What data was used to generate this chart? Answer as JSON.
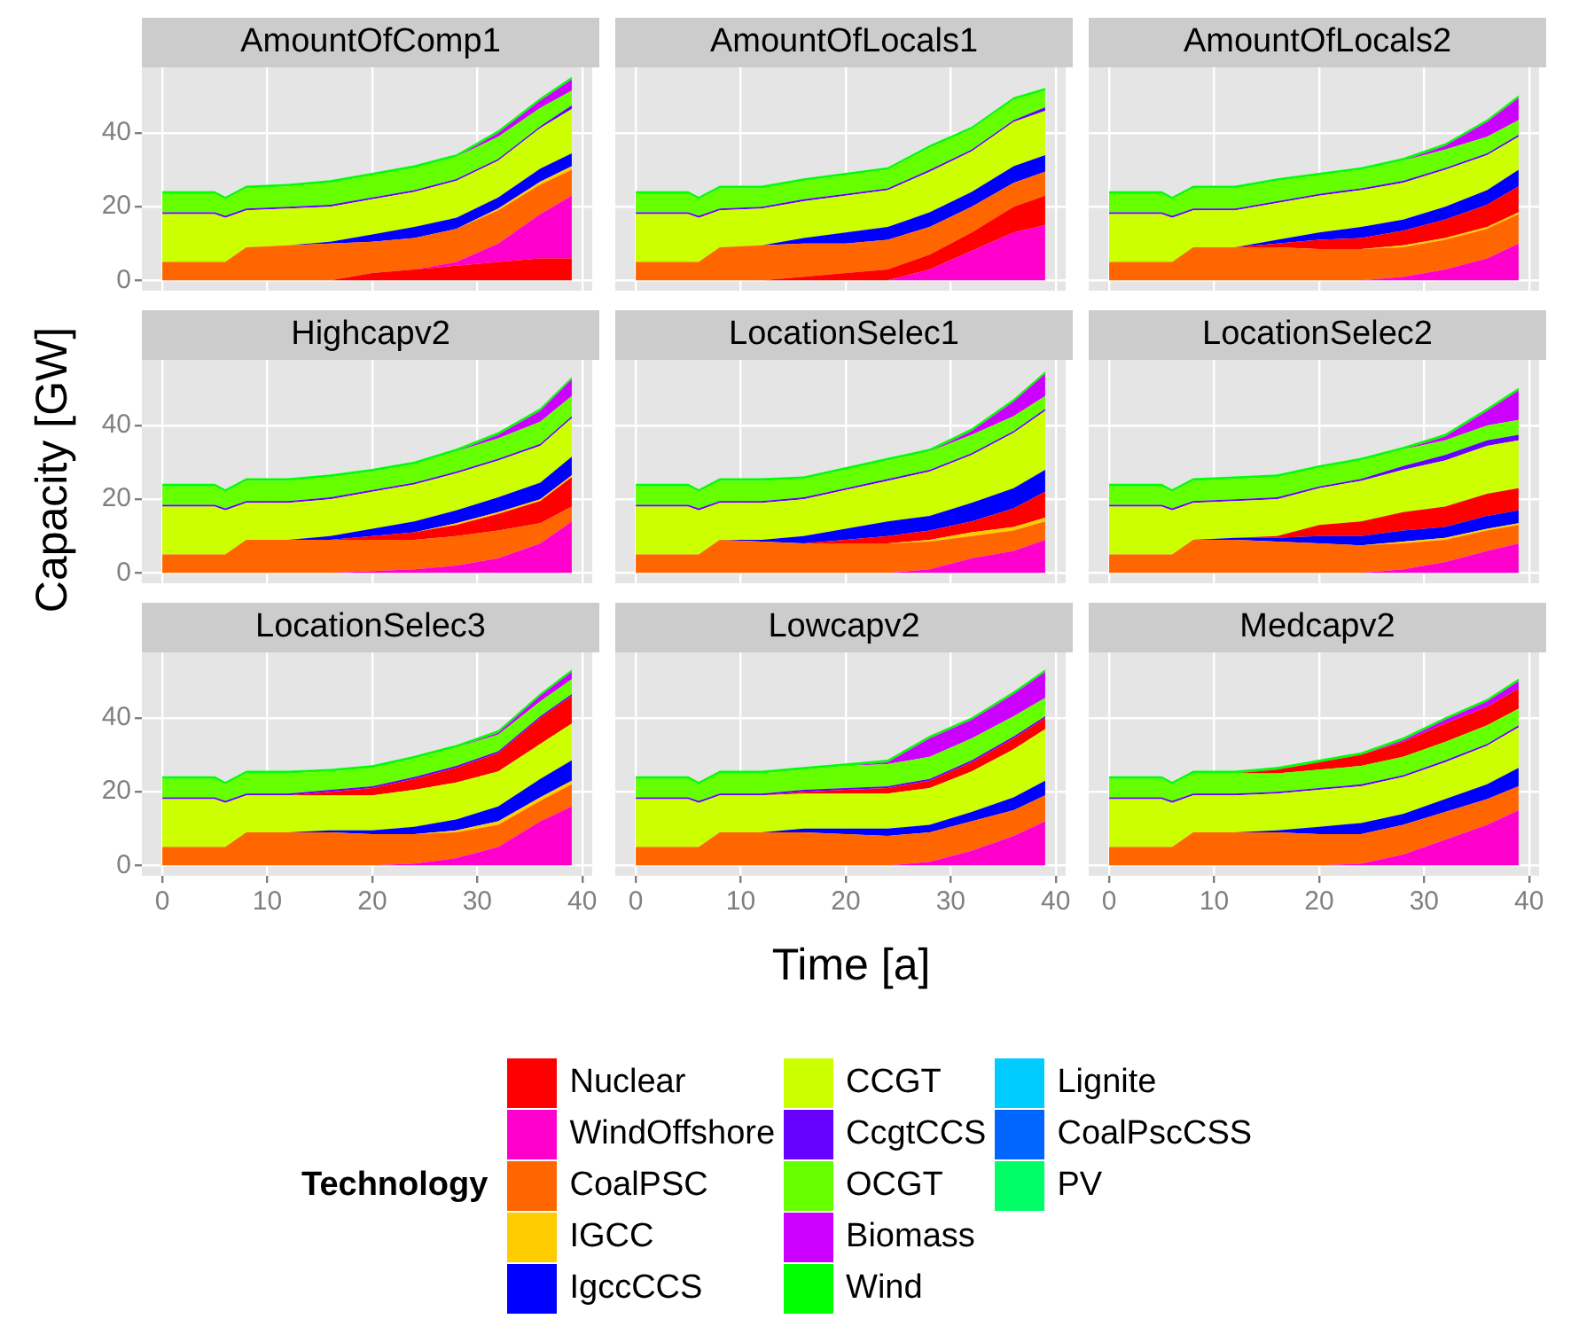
{
  "chart_data": [
    {
      "type": "area",
      "title": "AmountOfComp1",
      "xlabel": "Time [a]",
      "ylabel": "Capacity [GW]",
      "legend": "bottom",
      "legend_title": "Technology",
      "stacked": true,
      "grid": true,
      "tick_labels": "y",
      "x": [
        0,
        5,
        6,
        8,
        12,
        16,
        20,
        24,
        28,
        32,
        36,
        39
      ],
      "xlim": [
        -1.95,
        40.95
      ],
      "ylim": [
        -2.8,
        57.8
      ],
      "xticks": [
        0,
        10,
        20,
        30,
        40
      ],
      "yticks": [
        0,
        20,
        40
      ],
      "series": [
        {
          "name": "Nuclear",
          "color": "#ff0000",
          "values": [
            0,
            0,
            0,
            0,
            0,
            0,
            2,
            3,
            4,
            5,
            6,
            6
          ]
        },
        {
          "name": "WindOffshore",
          "color": "#ff00cc",
          "values": [
            0,
            0,
            0,
            0,
            0,
            0,
            0,
            0,
            1,
            5,
            12,
            17
          ]
        },
        {
          "name": "CoalPSC",
          "color": "#ff6600",
          "values": [
            5,
            5,
            5,
            9,
            9.5,
            10,
            8.5,
            8.5,
            9,
            9,
            8,
            7
          ]
        },
        {
          "name": "IGCC",
          "color": "#ffcc00",
          "values": [
            0,
            0,
            0,
            0,
            0,
            0,
            0,
            0,
            0,
            0.5,
            0.8,
            1
          ]
        },
        {
          "name": "IgccCCS",
          "color": "#0000ff",
          "values": [
            0,
            0,
            0,
            0,
            0,
            0.5,
            2,
            3,
            3,
            3,
            3.5,
            3.5
          ]
        },
        {
          "name": "CCGT",
          "color": "#ccff00",
          "values": [
            13,
            13,
            12,
            10,
            10,
            9.5,
            9.5,
            9.5,
            10,
            10,
            11,
            12
          ]
        },
        {
          "name": "CcgtCCS",
          "color": "#6600ff",
          "values": [
            0.5,
            0.5,
            0.5,
            0.5,
            0.5,
            0.5,
            0.5,
            0.5,
            0.5,
            0.5,
            0.5,
            1
          ]
        },
        {
          "name": "OCGT",
          "color": "#66ff00",
          "values": [
            5,
            5,
            4.5,
            5.5,
            5.5,
            6,
            6,
            6,
            6,
            6,
            5,
            4
          ]
        },
        {
          "name": "Biomass",
          "color": "#cc00ff",
          "values": [
            0,
            0,
            0,
            0,
            0,
            0,
            0,
            0,
            0,
            1,
            2,
            3
          ]
        },
        {
          "name": "Wind",
          "color": "#00ff00",
          "values": [
            0.7,
            0.7,
            0.7,
            0.7,
            0.7,
            0.7,
            0.7,
            0.7,
            0.7,
            0.7,
            0.7,
            0.7
          ]
        },
        {
          "name": "Lignite",
          "color": "#00ccff",
          "values": [
            null,
            null,
            null,
            null,
            null,
            null,
            null,
            null,
            null,
            null,
            null,
            null
          ]
        },
        {
          "name": "CoalPscCSS",
          "color": "#0066ff",
          "values": [
            null,
            null,
            null,
            null,
            null,
            null,
            null,
            null,
            null,
            null,
            null,
            null
          ]
        },
        {
          "name": "PV",
          "color": "#00ff66",
          "values": [
            null,
            null,
            null,
            null,
            null,
            null,
            null,
            null,
            null,
            null,
            null,
            null
          ]
        }
      ]
    },
    {
      "type": "area",
      "title": "AmountOfLocals1",
      "stacked": true,
      "grid": true,
      "tick_labels": false,
      "x": [
        0,
        5,
        6,
        8,
        12,
        16,
        20,
        24,
        28,
        32,
        36,
        39
      ],
      "xlim": [
        -1.95,
        40.95
      ],
      "ylim": [
        -2.8,
        57.8
      ],
      "xticks": [
        0,
        10,
        20,
        30,
        40
      ],
      "yticks": [
        0,
        20,
        40
      ],
      "series": [
        {
          "color": "#ff00cc",
          "values": [
            0,
            0,
            0,
            0,
            0,
            0,
            0,
            0,
            3,
            8,
            13,
            15
          ]
        },
        {
          "color": "#ff0000",
          "values": [
            0,
            0,
            0,
            0,
            0,
            1,
            2,
            3,
            4,
            5,
            7,
            8
          ]
        },
        {
          "color": "#ff6600",
          "values": [
            5,
            5,
            5,
            9,
            9.5,
            9,
            8,
            8,
            7.5,
            7,
            6.5,
            6.5
          ]
        },
        {
          "color": "#0000ff",
          "values": [
            0,
            0,
            0,
            0,
            0,
            1.5,
            3,
            3.5,
            4,
            4,
            4.5,
            4.5
          ]
        },
        {
          "color": "#ccff00",
          "values": [
            13,
            13,
            12,
            10,
            10,
            10,
            10,
            10,
            11,
            11,
            12,
            12
          ]
        },
        {
          "color": "#6600ff",
          "values": [
            0.5,
            0.5,
            0.5,
            0.5,
            0.5,
            0.5,
            0.5,
            0.5,
            0.5,
            0.5,
            0.5,
            1
          ]
        },
        {
          "color": "#66ff00",
          "values": [
            5,
            5,
            4.5,
            5.5,
            5,
            5,
            5,
            5,
            6,
            5.5,
            5.5,
            4.5
          ]
        },
        {
          "color": "#00ff00",
          "values": [
            0.7,
            0.7,
            0.7,
            0.7,
            0.7,
            0.7,
            0.7,
            0.7,
            0.7,
            0.7,
            0.7,
            0.7
          ]
        }
      ]
    },
    {
      "type": "area",
      "title": "AmountOfLocals2",
      "stacked": true,
      "grid": true,
      "tick_labels": false,
      "x": [
        0,
        5,
        6,
        8,
        12,
        16,
        20,
        24,
        28,
        32,
        36,
        39
      ],
      "xlim": [
        -1.95,
        40.95
      ],
      "ylim": [
        -2.8,
        57.8
      ],
      "xticks": [
        0,
        10,
        20,
        30,
        40
      ],
      "yticks": [
        0,
        20,
        40
      ],
      "series": [
        {
          "color": "#ff00cc",
          "values": [
            0,
            0,
            0,
            0,
            0,
            0,
            0,
            0,
            1,
            3,
            6,
            10
          ]
        },
        {
          "color": "#ff6600",
          "values": [
            5,
            5,
            5,
            9,
            9,
            9,
            8.5,
            8.5,
            8,
            8,
            8,
            8
          ]
        },
        {
          "color": "#ffcc00",
          "values": [
            0,
            0,
            0,
            0,
            0,
            0,
            0,
            0,
            0.5,
            0.5,
            0.5,
            0.5
          ]
        },
        {
          "color": "#ff0000",
          "values": [
            0,
            0,
            0,
            0,
            0,
            1,
            2.5,
            3,
            4,
            5,
            6,
            7
          ]
        },
        {
          "color": "#0000ff",
          "values": [
            0,
            0,
            0,
            0,
            0,
            1,
            2,
            3,
            3,
            3.5,
            4,
            4.5
          ]
        },
        {
          "color": "#ccff00",
          "values": [
            13,
            13,
            12,
            10,
            10,
            10,
            10,
            10,
            10,
            10,
            9.5,
            9
          ]
        },
        {
          "color": "#6600ff",
          "values": [
            0.5,
            0.5,
            0.5,
            0.5,
            0.5,
            0.5,
            0.5,
            0.5,
            0.5,
            0.5,
            0.5,
            0.5
          ]
        },
        {
          "color": "#66ff00",
          "values": [
            5,
            5,
            4.5,
            5.5,
            5.5,
            5.5,
            5,
            5,
            5.5,
            5,
            4.5,
            4
          ]
        },
        {
          "color": "#cc00ff",
          "values": [
            0,
            0,
            0,
            0,
            0,
            0,
            0,
            0,
            0,
            1,
            4,
            6
          ]
        },
        {
          "color": "#00ff00",
          "values": [
            0.7,
            0.7,
            0.7,
            0.7,
            0.7,
            0.7,
            0.7,
            0.7,
            0.7,
            0.7,
            0.7,
            0.7
          ]
        }
      ]
    },
    {
      "type": "area",
      "title": "Highcapv2",
      "stacked": true,
      "grid": true,
      "tick_labels": "y",
      "x": [
        0,
        5,
        6,
        8,
        12,
        16,
        20,
        24,
        28,
        32,
        36,
        39
      ],
      "xlim": [
        -1.95,
        40.95
      ],
      "ylim": [
        -2.8,
        57.8
      ],
      "xticks": [
        0,
        10,
        20,
        30,
        40
      ],
      "yticks": [
        0,
        20,
        40
      ],
      "series": [
        {
          "color": "#ff00cc",
          "values": [
            0,
            0,
            0,
            0,
            0,
            0,
            0.5,
            1,
            2,
            4,
            8,
            14
          ]
        },
        {
          "color": "#ff6600",
          "values": [
            5,
            5,
            5,
            9,
            9,
            9,
            8.5,
            8,
            8,
            7.5,
            5.5,
            4
          ]
        },
        {
          "color": "#ff0000",
          "values": [
            0,
            0,
            0,
            0,
            0,
            0,
            1,
            2,
            3,
            4.5,
            6,
            8
          ]
        },
        {
          "color": "#ffcc00",
          "values": [
            0,
            0,
            0,
            0,
            0,
            0,
            0,
            0,
            0.5,
            0.5,
            0.5,
            0.5
          ]
        },
        {
          "color": "#0000ff",
          "values": [
            0,
            0,
            0,
            0,
            0,
            1,
            2,
            3,
            3.5,
            4,
            4.5,
            5
          ]
        },
        {
          "color": "#ccff00",
          "values": [
            13,
            13,
            12,
            10,
            10,
            10,
            10,
            10,
            10,
            10,
            10,
            10.5
          ]
        },
        {
          "color": "#6600ff",
          "values": [
            0.5,
            0.5,
            0.5,
            0.5,
            0.5,
            0.5,
            0.5,
            0.5,
            0.5,
            0.5,
            0.5,
            0.5
          ]
        },
        {
          "color": "#66ff00",
          "values": [
            5,
            5,
            4.5,
            5.5,
            5.5,
            5.5,
            5,
            5,
            5.5,
            5.5,
            6,
            5.5
          ]
        },
        {
          "color": "#cc00ff",
          "values": [
            0,
            0,
            0,
            0,
            0,
            0,
            0,
            0,
            0,
            1,
            3,
            4.5
          ]
        },
        {
          "color": "#00ff00",
          "values": [
            0.7,
            0.7,
            0.7,
            0.7,
            0.7,
            0.7,
            0.7,
            0.7,
            0.7,
            0.7,
            0.7,
            0.7
          ]
        }
      ]
    },
    {
      "type": "area",
      "title": "LocationSelec1",
      "stacked": true,
      "grid": true,
      "tick_labels": false,
      "x": [
        0,
        5,
        6,
        8,
        12,
        16,
        20,
        24,
        28,
        32,
        36,
        39
      ],
      "xlim": [
        -1.95,
        40.95
      ],
      "ylim": [
        -2.8,
        57.8
      ],
      "xticks": [
        0,
        10,
        20,
        30,
        40
      ],
      "yticks": [
        0,
        20,
        40
      ],
      "series": [
        {
          "color": "#ff00cc",
          "values": [
            0,
            0,
            0,
            0,
            0,
            0,
            0,
            0,
            1,
            4,
            6,
            9
          ]
        },
        {
          "color": "#ff6600",
          "values": [
            5,
            5,
            5,
            9,
            8.5,
            8,
            8,
            8,
            7.5,
            6,
            5.5,
            5
          ]
        },
        {
          "color": "#ffcc00",
          "values": [
            0,
            0,
            0,
            0,
            0,
            0,
            0,
            0,
            0.5,
            1,
            1,
            1
          ]
        },
        {
          "color": "#ff0000",
          "values": [
            0,
            0,
            0,
            0,
            0,
            0,
            1,
            2,
            2.5,
            3,
            5,
            7
          ]
        },
        {
          "color": "#0000ff",
          "values": [
            0,
            0,
            0,
            0,
            0.5,
            2,
            3,
            4,
            4,
            5,
            5.5,
            6
          ]
        },
        {
          "color": "#ccff00",
          "values": [
            13,
            13,
            12,
            10,
            10,
            10,
            10.5,
            11,
            12,
            13,
            15,
            16
          ]
        },
        {
          "color": "#6600ff",
          "values": [
            0.5,
            0.5,
            0.5,
            0.5,
            0.5,
            0.5,
            0.5,
            0.5,
            0.5,
            0.5,
            0.5,
            0.5
          ]
        },
        {
          "color": "#66ff00",
          "values": [
            5,
            5,
            4.5,
            5.5,
            5.5,
            5,
            5,
            5,
            5,
            5,
            4,
            3.5
          ]
        },
        {
          "color": "#cc00ff",
          "values": [
            0,
            0,
            0,
            0,
            0,
            0,
            0,
            0,
            0,
            1,
            4,
            6
          ]
        },
        {
          "color": "#00ff00",
          "values": [
            0.7,
            0.7,
            0.7,
            0.7,
            0.7,
            0.7,
            0.7,
            0.7,
            0.7,
            0.7,
            0.7,
            0.7
          ]
        }
      ]
    },
    {
      "type": "area",
      "title": "LocationSelec2",
      "stacked": true,
      "grid": true,
      "tick_labels": false,
      "x": [
        0,
        5,
        6,
        8,
        12,
        16,
        20,
        24,
        28,
        32,
        36,
        39
      ],
      "xlim": [
        -1.95,
        40.95
      ],
      "ylim": [
        -2.8,
        57.8
      ],
      "xticks": [
        0,
        10,
        20,
        30,
        40
      ],
      "yticks": [
        0,
        20,
        40
      ],
      "series": [
        {
          "color": "#ff00cc",
          "values": [
            0,
            0,
            0,
            0,
            0,
            0,
            0,
            0,
            1,
            3,
            6,
            8
          ]
        },
        {
          "color": "#ff6600",
          "values": [
            5,
            5,
            5,
            9,
            9,
            8.5,
            8,
            7.5,
            7,
            6,
            5.5,
            5
          ]
        },
        {
          "color": "#ffcc00",
          "values": [
            0,
            0,
            0,
            0,
            0,
            0,
            0,
            0,
            0.5,
            0.5,
            0.5,
            0.5
          ]
        },
        {
          "color": "#0000ff",
          "values": [
            0,
            0,
            0,
            0,
            0.5,
            1,
            2,
            2.5,
            3,
            3,
            3.5,
            3.5
          ]
        },
        {
          "color": "#ff0000",
          "values": [
            0,
            0,
            0,
            0,
            0,
            0.5,
            3,
            4,
            5,
            5.5,
            6,
            6
          ]
        },
        {
          "color": "#ccff00",
          "values": [
            13,
            13,
            12,
            10,
            10,
            10,
            10,
            11,
            11.5,
            12.5,
            13,
            13
          ]
        },
        {
          "color": "#6600ff",
          "values": [
            0.5,
            0.5,
            0.5,
            0.5,
            0.5,
            0.5,
            0.5,
            0.5,
            1,
            1.5,
            1.5,
            1.5
          ]
        },
        {
          "color": "#66ff00",
          "values": [
            5,
            5,
            4.5,
            5.5,
            5.5,
            5.5,
            5,
            5,
            4.5,
            4,
            4,
            4
          ]
        },
        {
          "color": "#cc00ff",
          "values": [
            0,
            0,
            0,
            0,
            0,
            0,
            0,
            0,
            0,
            1,
            4,
            8
          ]
        },
        {
          "color": "#00ff00",
          "values": [
            0.7,
            0.7,
            0.7,
            0.7,
            0.7,
            0.7,
            0.7,
            0.7,
            0.7,
            0.7,
            0.7,
            0.7
          ]
        }
      ]
    },
    {
      "type": "area",
      "title": "LocationSelec3",
      "stacked": true,
      "grid": true,
      "x": [
        0,
        5,
        6,
        8,
        12,
        16,
        20,
        24,
        28,
        32,
        36,
        39
      ],
      "xlim": [
        -1.95,
        40.95
      ],
      "ylim": [
        -2.8,
        57.8
      ],
      "xticks": [
        0,
        10,
        20,
        30,
        40
      ],
      "yticks": [
        0,
        20,
        40
      ],
      "series": [
        {
          "color": "#ff00cc",
          "values": [
            0,
            0,
            0,
            0,
            0,
            0,
            0,
            0.5,
            2,
            5,
            12,
            16
          ]
        },
        {
          "color": "#ff6600",
          "values": [
            5,
            5,
            5,
            9,
            9,
            9,
            8.5,
            8,
            7,
            6,
            5.5,
            6
          ]
        },
        {
          "color": "#ffcc00",
          "values": [
            0,
            0,
            0,
            0,
            0,
            0,
            0,
            0,
            0.5,
            1,
            1,
            1
          ]
        },
        {
          "color": "#0000ff",
          "values": [
            0,
            0,
            0,
            0,
            0,
            0.5,
            1,
            2,
            3,
            4,
            5,
            5.5
          ]
        },
        {
          "color": "#ccff00",
          "values": [
            13,
            13,
            12,
            10,
            10,
            9.5,
            9.5,
            10,
            10,
            9.5,
            9.5,
            10
          ]
        },
        {
          "color": "#ff0000",
          "values": [
            0,
            0,
            0,
            0,
            0,
            1,
            2,
            3,
            4,
            5,
            7,
            7.5
          ]
        },
        {
          "color": "#6600ff",
          "values": [
            0.5,
            0.5,
            0.5,
            0.5,
            0.5,
            0.5,
            0.5,
            0.5,
            0.5,
            0.5,
            0.5,
            0.5
          ]
        },
        {
          "color": "#66ff00",
          "values": [
            5,
            5,
            4.5,
            5.5,
            5.5,
            5,
            5,
            5,
            5,
            4.5,
            4,
            4
          ]
        },
        {
          "color": "#cc00ff",
          "values": [
            0,
            0,
            0,
            0,
            0,
            0,
            0,
            0,
            0,
            0.5,
            1.5,
            2
          ]
        },
        {
          "color": "#00ff00",
          "values": [
            0.7,
            0.7,
            0.7,
            0.7,
            0.7,
            0.7,
            0.7,
            0.7,
            0.7,
            0.7,
            0.7,
            0.7
          ]
        }
      ]
    },
    {
      "type": "area",
      "title": "Lowcapv2",
      "stacked": true,
      "grid": true,
      "tick_labels": "x",
      "x": [
        0,
        5,
        6,
        8,
        12,
        16,
        20,
        24,
        28,
        32,
        36,
        39
      ],
      "xlim": [
        -1.95,
        40.95
      ],
      "ylim": [
        -2.8,
        57.8
      ],
      "xticks": [
        0,
        10,
        20,
        30,
        40
      ],
      "yticks": [
        0,
        20,
        40
      ],
      "series": [
        {
          "color": "#ff00cc",
          "values": [
            0,
            0,
            0,
            0,
            0,
            0,
            0,
            0,
            1,
            4,
            8,
            12
          ]
        },
        {
          "color": "#ff6600",
          "values": [
            5,
            5,
            5,
            9,
            9,
            9,
            8.5,
            8,
            8,
            8,
            7,
            7
          ]
        },
        {
          "color": "#0000ff",
          "values": [
            0,
            0,
            0,
            0,
            0,
            1,
            1.5,
            2,
            2,
            2.5,
            3.5,
            4
          ]
        },
        {
          "color": "#ccff00",
          "values": [
            13,
            13,
            12,
            10,
            10,
            9.5,
            9.5,
            9.5,
            10,
            11,
            13,
            14
          ]
        },
        {
          "color": "#ff0000",
          "values": [
            0,
            0,
            0,
            0,
            0,
            0.5,
            1,
            1.5,
            2,
            2.5,
            3,
            3
          ]
        },
        {
          "color": "#6600ff",
          "values": [
            0.5,
            0.5,
            0.5,
            0.5,
            0.5,
            0.5,
            0.5,
            0.5,
            0.5,
            0.5,
            0.5,
            0.5
          ]
        },
        {
          "color": "#66ff00",
          "values": [
            5,
            5,
            4.5,
            5.5,
            5.5,
            5.5,
            6,
            6,
            6,
            6,
            5.5,
            5
          ]
        },
        {
          "color": "#cc00ff",
          "values": [
            0,
            0,
            0,
            0,
            0,
            0,
            0,
            0.5,
            5,
            5,
            6,
            7
          ]
        },
        {
          "color": "#00ff00",
          "values": [
            0.7,
            0.7,
            0.7,
            0.7,
            0.7,
            0.7,
            0.7,
            0.7,
            0.7,
            0.7,
            0.7,
            0.7
          ]
        }
      ]
    },
    {
      "type": "area",
      "title": "Medcapv2",
      "stacked": true,
      "grid": true,
      "tick_labels": "x",
      "x": [
        0,
        5,
        6,
        8,
        12,
        16,
        20,
        24,
        28,
        32,
        36,
        39
      ],
      "xlim": [
        -1.95,
        40.95
      ],
      "ylim": [
        -2.8,
        57.8
      ],
      "xticks": [
        0,
        10,
        20,
        30,
        40
      ],
      "yticks": [
        0,
        20,
        40
      ],
      "series": [
        {
          "color": "#ff00cc",
          "values": [
            0,
            0,
            0,
            0,
            0,
            0,
            0,
            0.5,
            3,
            7,
            11,
            15
          ]
        },
        {
          "color": "#ff6600",
          "values": [
            5,
            5,
            5,
            9,
            9,
            9,
            8.5,
            8,
            8,
            7.5,
            7,
            6.5
          ]
        },
        {
          "color": "#0000ff",
          "values": [
            0,
            0,
            0,
            0,
            0,
            0.5,
            2,
            3,
            3,
            3.5,
            4,
            5
          ]
        },
        {
          "color": "#ccff00",
          "values": [
            13,
            13,
            12,
            10,
            10,
            10,
            10,
            10,
            10,
            10,
            10.5,
            11
          ]
        },
        {
          "color": "#6600ff",
          "values": [
            0.5,
            0.5,
            0.5,
            0.5,
            0.5,
            0.5,
            0.5,
            0.5,
            0.5,
            0.5,
            0.5,
            0.5
          ]
        },
        {
          "color": "#66ff00",
          "values": [
            5,
            5,
            4.5,
            5.5,
            5.5,
            5,
            5,
            5,
            5,
            5,
            5,
            4.5
          ]
        },
        {
          "color": "#ff0000",
          "values": [
            0,
            0,
            0,
            0,
            0,
            1,
            2,
            3,
            4,
            5,
            5,
            5.5
          ]
        },
        {
          "color": "#cc00ff",
          "values": [
            0,
            0,
            0,
            0,
            0,
            0,
            0,
            0,
            0.5,
            1,
            1.5,
            2
          ]
        },
        {
          "color": "#00ff00",
          "values": [
            0.7,
            0.7,
            0.7,
            0.7,
            0.7,
            0.7,
            0.7,
            0.7,
            0.7,
            0.7,
            0.7,
            0.7
          ]
        }
      ]
    }
  ]
}
